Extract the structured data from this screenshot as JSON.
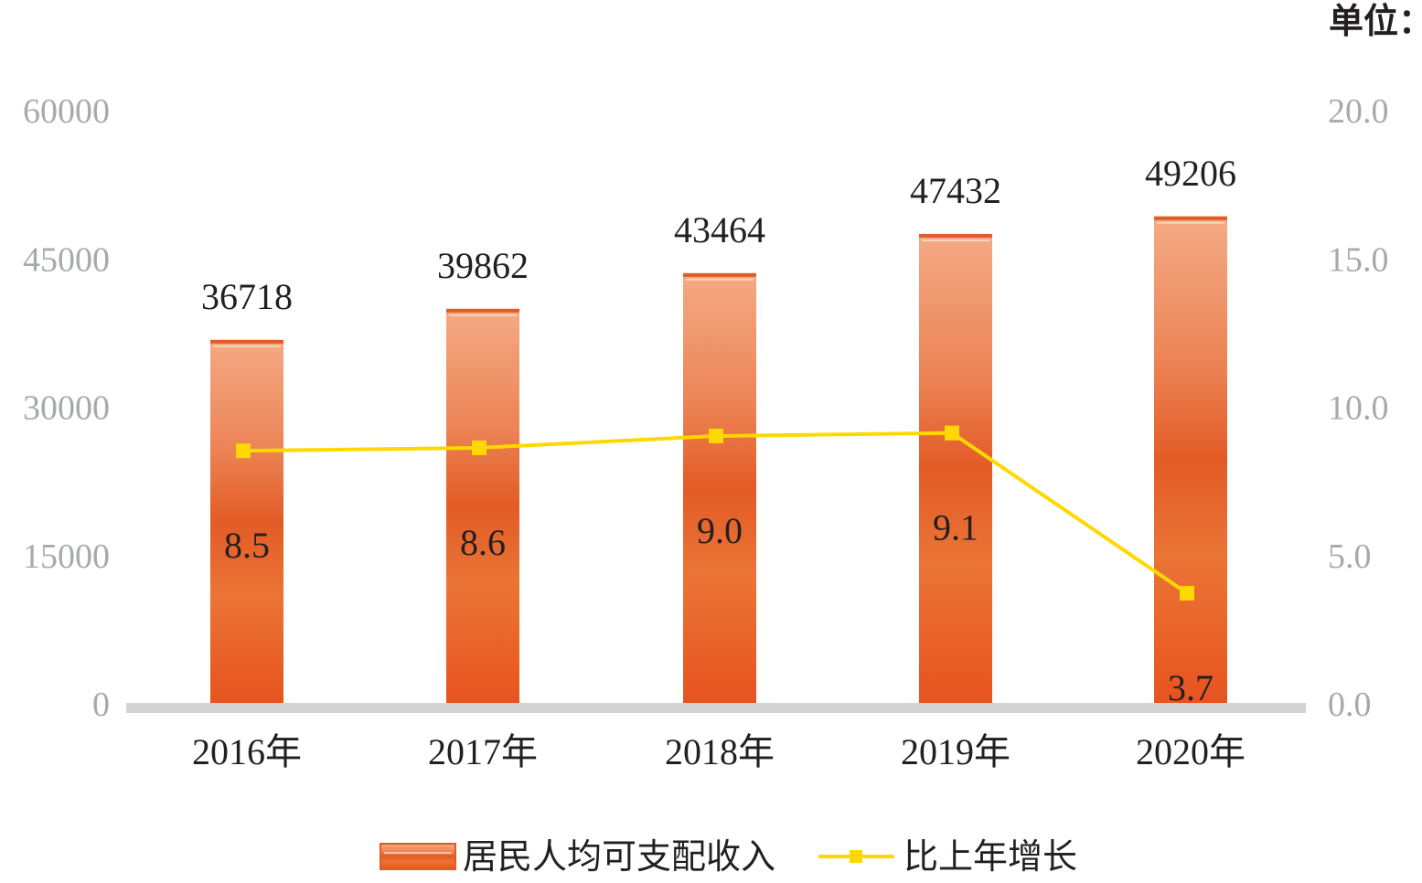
{
  "chart_data": {
    "type": "bar",
    "unit_label": "单位：",
    "categories": [
      "2016年",
      "2017年",
      "2018年",
      "2019年",
      "2020年"
    ],
    "series": [
      {
        "name": "居民人均可支配收入",
        "type": "bar",
        "axis": "left",
        "values": [
          36718,
          39862,
          43464,
          47432,
          49206
        ],
        "labels": [
          "36718",
          "39862",
          "43464",
          "47432",
          "49206"
        ]
      },
      {
        "name": "比上年增长",
        "type": "line",
        "axis": "right",
        "values": [
          8.5,
          8.6,
          9.0,
          9.1,
          3.7
        ],
        "labels": [
          "8.5",
          "8.6",
          "9.0",
          "9.1",
          "3.7"
        ]
      }
    ],
    "y_left": {
      "ylim": [
        0,
        60000
      ],
      "ticks": [
        "0",
        "15000",
        "30000",
        "45000",
        "60000"
      ]
    },
    "y_right": {
      "ylim": [
        0,
        20
      ],
      "ticks": [
        "0.0",
        "5.0",
        "10.0",
        "15.0",
        "20.0"
      ]
    },
    "legend_position": "bottom",
    "grid": false,
    "colors": {
      "bar_light": "#f2a47c",
      "bar_mid": "#e35b26",
      "bar_dark": "#e85a24",
      "line": "#ffd800",
      "axis": "#d1d3d4",
      "tick_text": "#a7a9ac",
      "text": "#231f20"
    }
  }
}
